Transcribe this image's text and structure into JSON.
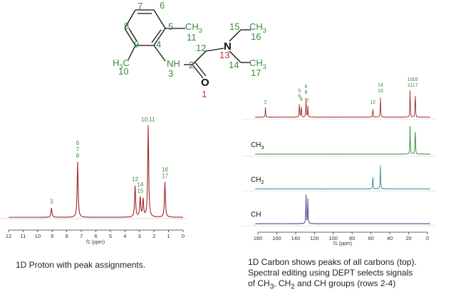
{
  "molecule": {
    "atoms": [
      {
        "id": "c6",
        "label": "6",
        "role": "locant"
      },
      {
        "id": "c7",
        "label": "7",
        "role": "locant"
      },
      {
        "id": "c8",
        "label": "8",
        "role": "locant"
      },
      {
        "id": "c5",
        "label": "5",
        "role": "locant"
      },
      {
        "id": "c9",
        "label": "9",
        "role": "locant"
      },
      {
        "id": "c4",
        "label": "4",
        "role": "locant"
      },
      {
        "id": "ch3-11",
        "label": "CH",
        "sub": "3",
        "role": "group"
      },
      {
        "id": "n11",
        "label": "11",
        "role": "locant"
      },
      {
        "id": "n15",
        "label": "15",
        "role": "locant"
      },
      {
        "id": "ch3-16",
        "label": "CH",
        "sub": "3",
        "role": "group"
      },
      {
        "id": "n16",
        "label": "16",
        "role": "locant"
      },
      {
        "id": "n12",
        "label": "12",
        "role": "locant"
      },
      {
        "id": "n-atom",
        "label": "N",
        "role": "atom"
      },
      {
        "id": "n13",
        "label": "13",
        "role": "red-locant"
      },
      {
        "id": "h3c",
        "label": "H",
        "sub": "3",
        "tail": "C",
        "role": "group"
      },
      {
        "id": "n10",
        "label": "10",
        "role": "locant"
      },
      {
        "id": "nh",
        "label": "NH",
        "role": "group"
      },
      {
        "id": "n3",
        "label": "3",
        "role": "locant"
      },
      {
        "id": "n2",
        "label": "2",
        "role": "locant"
      },
      {
        "id": "n14",
        "label": "14",
        "role": "locant"
      },
      {
        "id": "ch3-17",
        "label": "CH",
        "sub": "3",
        "role": "group"
      },
      {
        "id": "n17",
        "label": "17",
        "role": "locant"
      },
      {
        "id": "o-atom",
        "label": "O",
        "role": "atom"
      },
      {
        "id": "n1",
        "label": "1",
        "role": "red-locant"
      }
    ]
  },
  "proton_spectrum": {
    "x_axis_label": "f1 (ppm)",
    "x_ticks": [
      "12",
      "11",
      "10",
      "9",
      "8",
      "7",
      "6",
      "5",
      "4",
      "3",
      "2",
      "1",
      "0"
    ],
    "peaks": [
      {
        "ppm": 9.05,
        "height": 0.09,
        "label": "3"
      },
      {
        "ppm": 7.25,
        "height": 0.52,
        "label": "6\n7\n8"
      },
      {
        "ppm": 3.3,
        "height": 0.3,
        "label": "12"
      },
      {
        "ppm": 2.95,
        "height": 0.19,
        "label": "14\n15"
      },
      {
        "ppm": 2.75,
        "height": 0.17,
        "label": ""
      },
      {
        "ppm": 2.4,
        "height": 0.86,
        "label": "10,11"
      },
      {
        "ppm": 1.25,
        "height": 0.33,
        "label": "16\n17"
      }
    ]
  },
  "carbon_spectrum": {
    "x_axis_label": "f1 (ppm)",
    "x_ticks": [
      "180",
      "160",
      "140",
      "120",
      "100",
      "80",
      "60",
      "40",
      "20",
      "0"
    ],
    "rows": [
      {
        "name": "all",
        "label": "",
        "color": "#a0262a",
        "peaks": [
          {
            "ppm": 172,
            "height": 0.35,
            "label": "2"
          },
          {
            "ppm": 136,
            "height": 0.55,
            "label": "5\n9"
          },
          {
            "ppm": 134,
            "height": 0.45,
            "label": "4"
          },
          {
            "ppm": 129,
            "height": 0.7,
            "label": "6\n8"
          },
          {
            "ppm": 127,
            "height": 0.4,
            "label": "7"
          },
          {
            "ppm": 58,
            "height": 0.35,
            "label": "12"
          },
          {
            "ppm": 50,
            "height": 0.75,
            "label": "14\n15"
          },
          {
            "ppm": 18.5,
            "height": 0.95,
            "label": "10\n11"
          },
          {
            "ppm": 13,
            "height": 0.95,
            "label": "16\n17"
          }
        ]
      },
      {
        "name": "CH3",
        "label": "CH",
        "sub": "3",
        "color": "#3a8a3a",
        "peaks": [
          {
            "ppm": 18.5,
            "height": 0.95
          },
          {
            "ppm": 13,
            "height": 0.95
          }
        ]
      },
      {
        "name": "CH2",
        "label": "CH",
        "sub": "2",
        "color": "#2a8a9a",
        "peaks": [
          {
            "ppm": 58,
            "height": 0.55
          },
          {
            "ppm": 50,
            "height": 0.95
          }
        ]
      },
      {
        "name": "CH",
        "label": "CH",
        "sub": "",
        "color": "#4b3a8c",
        "peaks": [
          {
            "ppm": 129,
            "height": 0.98
          },
          {
            "ppm": 127,
            "height": 0.85
          }
        ]
      }
    ]
  },
  "captions": {
    "proton": "1D Proton with peak assignments.",
    "carbon_line1": "1D Carbon shows peaks of all carbons (top).",
    "carbon_line2": "Spectral editing using DEPT selects signals",
    "carbon_line3_a": "of CH",
    "carbon_line3_sub1": "3",
    "carbon_line3_b": ", CH",
    "carbon_line3_sub2": "2",
    "carbon_line3_c": " and CH groups (rows 2-4)"
  },
  "colors": {
    "locant": "#3a8a3a",
    "red_locant": "#c0392b",
    "proton_trace": "#a0262a",
    "axis": "#333333"
  }
}
